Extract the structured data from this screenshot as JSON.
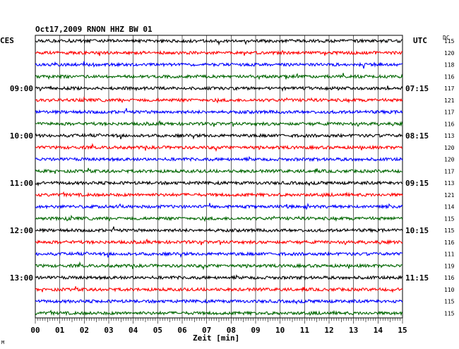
{
  "chart_data": {
    "type": "line",
    "title": "Oct17,2009   RNON HHZ BW 01",
    "left_timezone": "CES",
    "right_timezone": "UTC",
    "right_column_header": "DC",
    "xlabel": "Zeit [min]",
    "xlim": [
      0,
      15
    ],
    "x_ticks": [
      "00",
      "01",
      "02",
      "03",
      "04",
      "05",
      "06",
      "07",
      "08",
      "09",
      "10",
      "11",
      "12",
      "13",
      "14",
      "15"
    ],
    "hour_labels_left": [
      "09:00",
      "10:00",
      "11:00",
      "12:00",
      "13:00"
    ],
    "hour_labels_right": [
      "07:15",
      "08:15",
      "09:15",
      "10:15",
      "11:15"
    ],
    "trace_colors": [
      "#000000",
      "#ff0000",
      "#0000ff",
      "#006600"
    ],
    "dc_offsets": [
      115,
      120,
      118,
      116,
      117,
      121,
      117,
      116,
      113,
      120,
      120,
      117,
      113,
      121,
      114,
      115,
      115,
      116,
      111,
      119,
      116,
      110,
      115,
      115
    ],
    "grid": true,
    "footnote": "M"
  }
}
